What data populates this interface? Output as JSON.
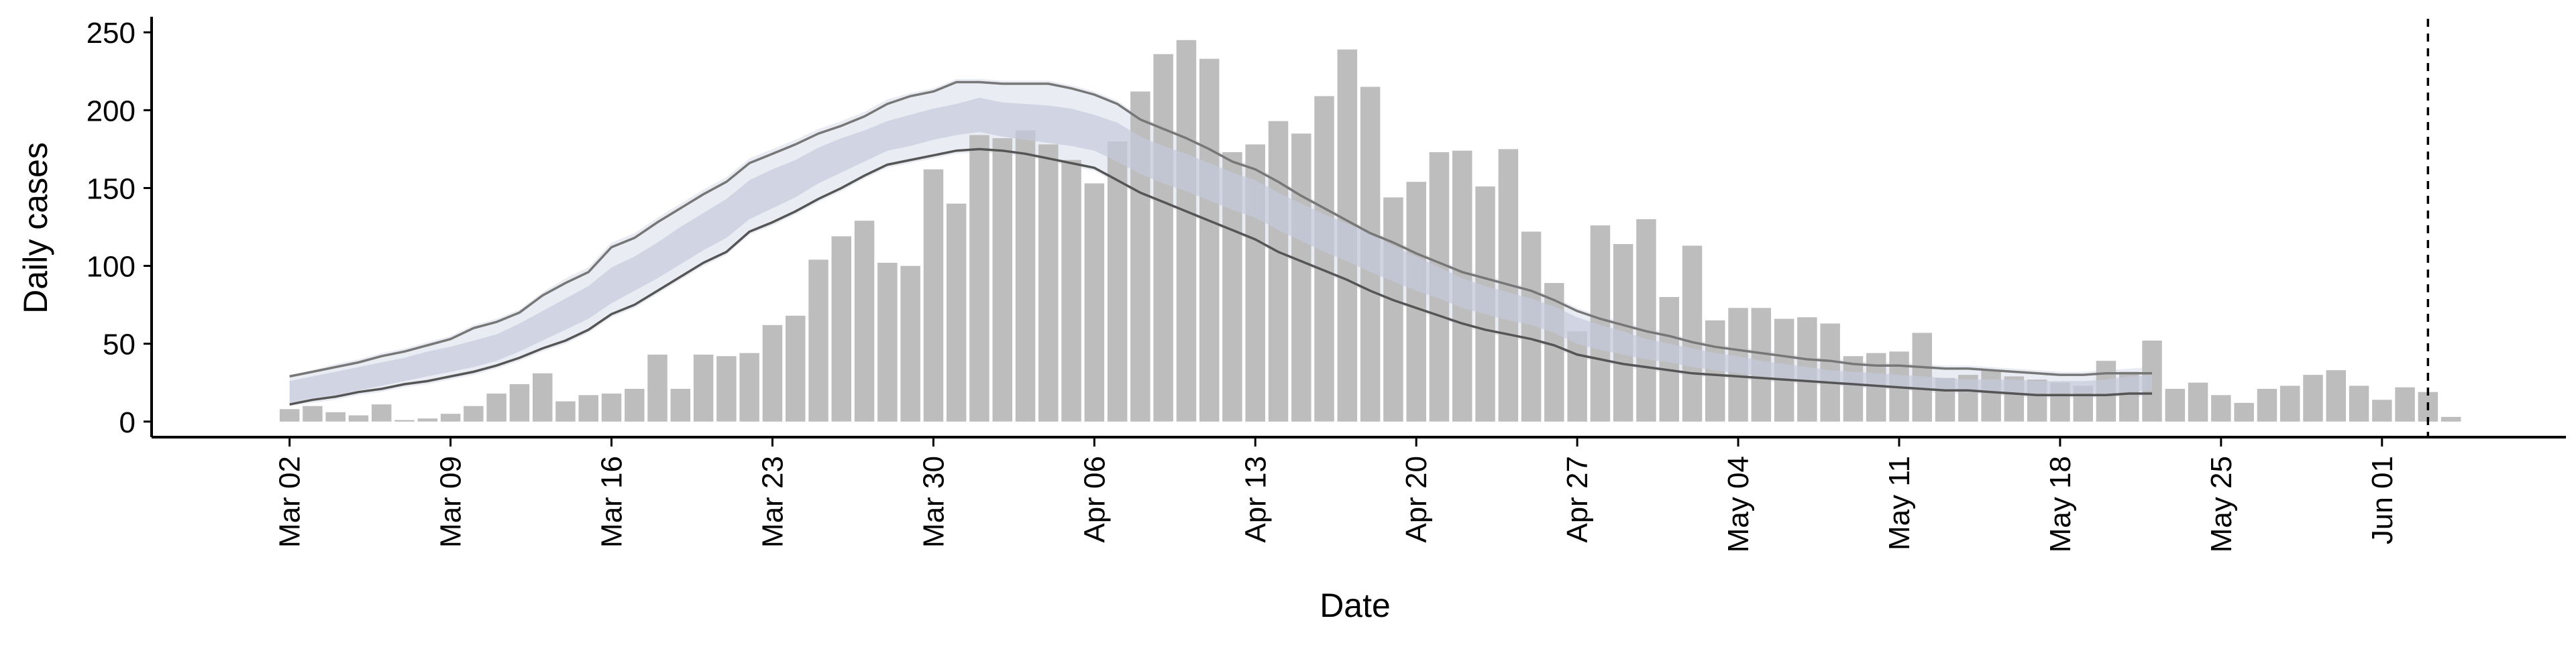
{
  "chart_data": {
    "type": "bar",
    "title": "",
    "xlabel": "Date",
    "ylabel": "Daily cases",
    "ylim": [
      -10,
      260
    ],
    "yticks": [
      0,
      50,
      100,
      150,
      200,
      250
    ],
    "grid": false,
    "legend": "none",
    "x_start": "2020-03-02",
    "x_range": [
      "2020-02-25",
      "2020-06-09"
    ],
    "xtick_dates": [
      "2020-03-02",
      "2020-03-09",
      "2020-03-16",
      "2020-03-23",
      "2020-03-30",
      "2020-04-06",
      "2020-04-13",
      "2020-04-20",
      "2020-04-27",
      "2020-05-04",
      "2020-05-11",
      "2020-05-18",
      "2020-05-25",
      "2020-06-01"
    ],
    "xtick_labels": [
      "Mar 02",
      "Mar 09",
      "Mar 16",
      "Mar 23",
      "Mar 30",
      "Apr 06",
      "Apr 13",
      "Apr 20",
      "Apr 27",
      "May 04",
      "May 11",
      "May 18",
      "May 25",
      "Jun 01"
    ],
    "vline_date": "2020-06-03",
    "bars": [
      8,
      10,
      6,
      4,
      11,
      1,
      2,
      5,
      10,
      18,
      24,
      31,
      13,
      17,
      18,
      21,
      43,
      21,
      43,
      42,
      44,
      62,
      68,
      104,
      119,
      129,
      102,
      100,
      162,
      140,
      184,
      182,
      187,
      178,
      168,
      153,
      180,
      212,
      236,
      245,
      233,
      173,
      178,
      193,
      185,
      209,
      239,
      215,
      144,
      154,
      173,
      174,
      151,
      175,
      122,
      89,
      58,
      126,
      114,
      130,
      80,
      113,
      65,
      73,
      73,
      66,
      67,
      63,
      42,
      44,
      45,
      57,
      28,
      30,
      33,
      29,
      27,
      25,
      23,
      39,
      32,
      52,
      21,
      25,
      17,
      12,
      21,
      23,
      30,
      33,
      23,
      14,
      22,
      19,
      3
    ],
    "series": [
      {
        "name": "",
        "color": "#777777",
        "values": [
          29,
          32,
          35,
          38,
          42,
          45,
          49,
          53,
          60,
          64,
          70,
          81,
          89,
          96,
          112,
          118,
          128,
          137,
          146,
          154,
          166,
          172,
          178,
          185,
          190,
          196,
          204,
          209,
          212,
          218,
          218,
          217,
          217,
          217,
          214,
          210,
          204,
          194,
          188,
          182,
          175,
          167,
          162,
          154,
          145,
          137,
          129,
          121,
          115,
          108,
          102,
          96,
          92,
          88,
          84,
          78,
          71,
          66,
          62,
          58,
          55,
          51,
          48,
          46,
          44,
          42,
          40,
          39,
          37,
          36,
          36,
          35,
          34,
          34,
          33,
          32,
          31,
          30,
          30,
          31,
          31,
          31
        ]
      },
      {
        "name": "",
        "color": "#555555",
        "values": [
          11,
          14,
          16,
          19,
          21,
          24,
          26,
          29,
          32,
          36,
          41,
          47,
          52,
          59,
          69,
          75,
          84,
          93,
          102,
          109,
          122,
          128,
          135,
          143,
          150,
          158,
          165,
          168,
          171,
          174,
          175,
          174,
          172,
          169,
          166,
          163,
          155,
          147,
          141,
          135,
          129,
          123,
          117,
          109,
          103,
          97,
          91,
          84,
          78,
          73,
          68,
          63,
          59,
          56,
          53,
          49,
          43,
          40,
          37,
          35,
          33,
          31,
          30,
          29,
          28,
          27,
          26,
          25,
          24,
          23,
          22,
          21,
          20,
          20,
          19,
          18,
          17,
          17,
          17,
          17,
          18,
          18
        ]
      },
      {
        "name": "",
        "color": "#c4cadb",
        "band_upper": [
          26,
          29,
          32,
          35,
          38,
          41,
          45,
          48,
          52,
          56,
          63,
          71,
          79,
          87,
          99,
          106,
          115,
          125,
          134,
          143,
          155,
          162,
          168,
          176,
          182,
          187,
          193,
          197,
          201,
          204,
          208,
          205,
          204,
          203,
          201,
          197,
          192,
          183,
          177,
          172,
          166,
          160,
          155,
          147,
          140,
          133,
          127,
          121,
          113,
          106,
          99,
          92,
          87,
          83,
          79,
          74,
          67,
          62,
          58,
          53,
          50,
          47,
          44,
          42,
          39,
          37,
          35,
          33,
          32,
          31,
          30,
          29,
          28,
          27,
          27,
          27,
          26,
          26,
          26,
          27,
          29,
          30
        ],
        "band_lower": [
          12,
          15,
          17,
          20,
          23,
          26,
          29,
          32,
          35,
          39,
          45,
          52,
          59,
          66,
          76,
          84,
          92,
          101,
          110,
          118,
          130,
          137,
          144,
          153,
          160,
          167,
          174,
          177,
          181,
          184,
          186,
          183,
          181,
          179,
          177,
          174,
          167,
          159,
          153,
          148,
          142,
          136,
          131,
          123,
          116,
          109,
          103,
          96,
          90,
          84,
          79,
          73,
          69,
          65,
          62,
          57,
          50,
          46,
          43,
          40,
          38,
          35,
          33,
          31,
          29,
          27,
          26,
          24,
          23,
          22,
          21,
          20,
          20,
          19,
          19,
          18,
          18,
          18,
          18,
          18,
          19,
          20
        ]
      },
      {
        "name": "",
        "color": "#e8eaf2",
        "band_upper": [
          30,
          33,
          37,
          40,
          44,
          47,
          51,
          55,
          62,
          66,
          72,
          83,
          92,
          99,
          115,
          121,
          131,
          140,
          149,
          157,
          169,
          175,
          181,
          188,
          193,
          199,
          207,
          211,
          214,
          220,
          220,
          219,
          219,
          219,
          216,
          212,
          206,
          196,
          190,
          184,
          177,
          169,
          164,
          156,
          147,
          139,
          131,
          123,
          117,
          110,
          104,
          98,
          94,
          90,
          86,
          80,
          73,
          68,
          64,
          60,
          57,
          53,
          50,
          48,
          46,
          44,
          42,
          41,
          39,
          38,
          38,
          37,
          36,
          36,
          35,
          34,
          33,
          32,
          32,
          33,
          34,
          35
        ],
        "band_lower": [
          10,
          12,
          14,
          17,
          19,
          22,
          24,
          27,
          30,
          34,
          39,
          45,
          50,
          57,
          67,
          73,
          82,
          91,
          100,
          107,
          120,
          126,
          133,
          141,
          148,
          156,
          163,
          166,
          169,
          172,
          173,
          172,
          170,
          167,
          164,
          161,
          153,
          145,
          139,
          133,
          127,
          121,
          115,
          107,
          101,
          95,
          89,
          82,
          76,
          71,
          66,
          61,
          57,
          54,
          51,
          47,
          41,
          38,
          35,
          33,
          31,
          29,
          28,
          27,
          26,
          25,
          24,
          23,
          22,
          21,
          20,
          19,
          18,
          18,
          17,
          16,
          15,
          15,
          15,
          15,
          16,
          16
        ]
      }
    ]
  }
}
